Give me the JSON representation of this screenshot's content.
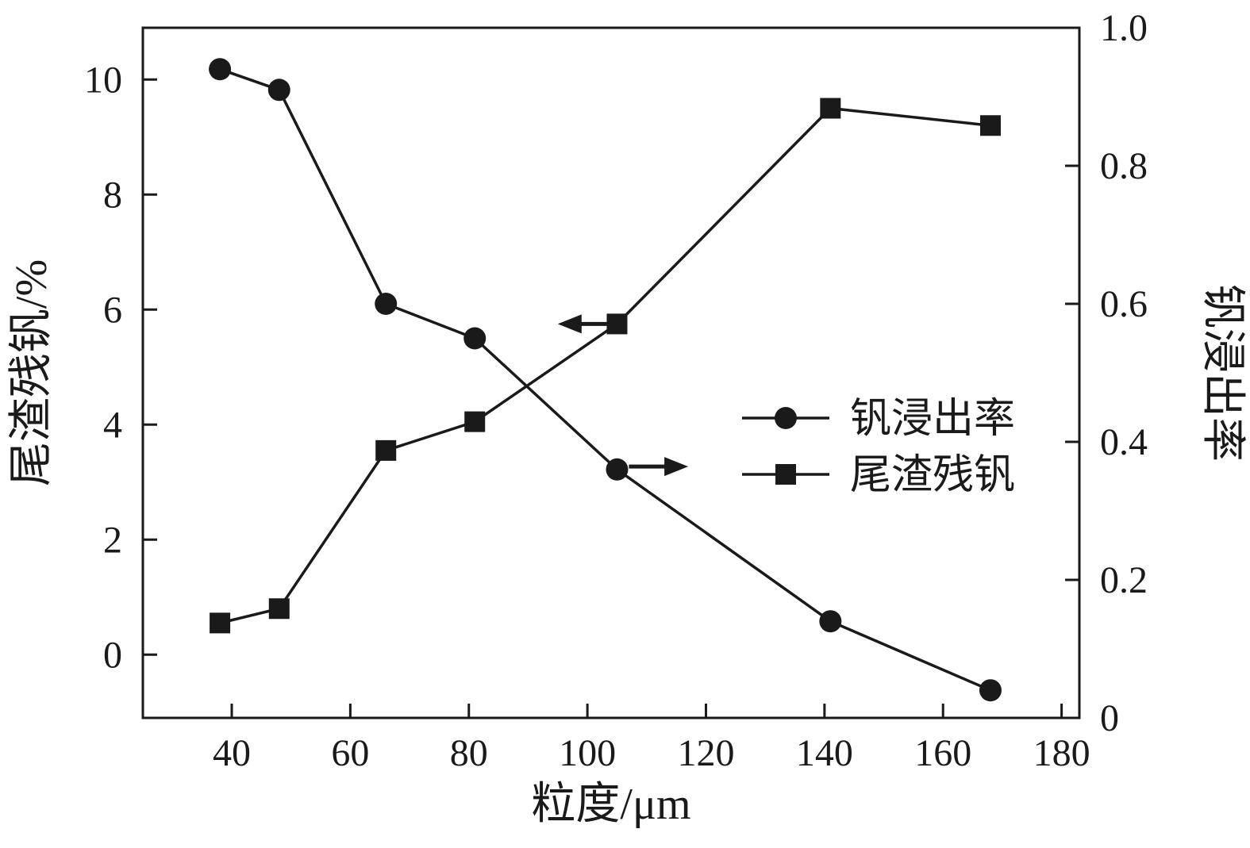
{
  "colors": {
    "line": "#1a1a1a",
    "text": "#1a1a1a",
    "frame": "#1a1a1a",
    "background": "#ffffff"
  },
  "chart_data": {
    "type": "line",
    "title": "",
    "xlabel": "粒度/μm",
    "ylabel_left": "尾渣残钒/%",
    "ylabel_right": "钒浸出率",
    "x_ticks": [
      "40",
      "60",
      "80",
      "100",
      "120",
      "140",
      "160",
      "180"
    ],
    "x_tick_values": [
      40,
      60,
      80,
      100,
      120,
      140,
      160,
      180
    ],
    "xlim": [
      25,
      183
    ],
    "left_ticks": [
      "0",
      "2",
      "4",
      "6",
      "8",
      "10"
    ],
    "left_tick_values": [
      0,
      2,
      4,
      6,
      8,
      10
    ],
    "ylim_left": [
      -1.1,
      10.9
    ],
    "right_ticks": [
      "0",
      "0.2",
      "0.4",
      "0.6",
      "0.8",
      "1.0"
    ],
    "right_tick_values": [
      0,
      0.2,
      0.4,
      0.6,
      0.8,
      1.0
    ],
    "ylim_right": [
      0,
      1.0
    ],
    "grid": false,
    "series": [
      {
        "name": "钒浸出率",
        "marker": "circle",
        "axis": "right",
        "x": [
          38,
          48,
          66,
          81,
          105,
          141,
          168
        ],
        "y": [
          0.94,
          0.91,
          0.6,
          0.55,
          0.36,
          0.14,
          0.04
        ]
      },
      {
        "name": "尾渣残钒",
        "marker": "square",
        "axis": "left",
        "x": [
          38,
          48,
          66,
          81,
          105,
          141,
          168
        ],
        "y": [
          0.55,
          0.8,
          3.55,
          4.05,
          5.75,
          9.5,
          9.2
        ]
      }
    ],
    "legend": {
      "entries": [
        "钒浸出率",
        "尾渣残钒"
      ],
      "position": "center-right"
    },
    "annotations": [
      {
        "type": "arrow",
        "direction": "left",
        "axis": "left",
        "x_from": 104,
        "x_to": 95,
        "y": 5.75
      },
      {
        "type": "arrow",
        "direction": "right",
        "axis": "left",
        "x_from": 107,
        "x_to": 117,
        "y": 3.27
      }
    ]
  }
}
